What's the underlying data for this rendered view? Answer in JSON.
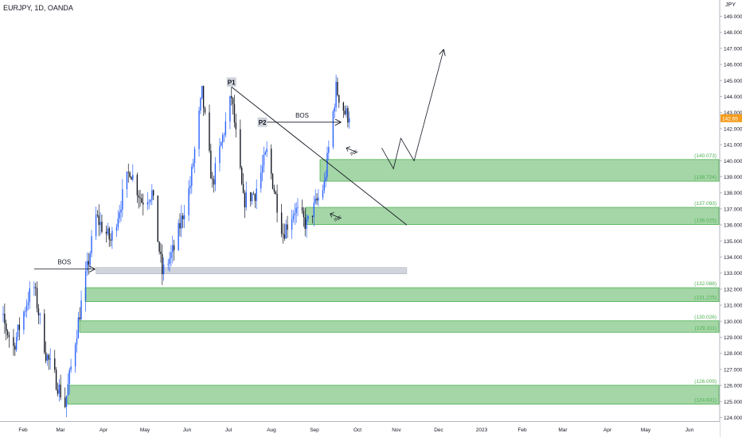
{
  "symbol_title": "EURJPY, 1D, OANDA",
  "currency": "JPY",
  "colors": {
    "up": "#2962ff",
    "down": "#131722",
    "zone_fill": "#a5d6a7",
    "zone_stroke": "#4caf50",
    "zone_label": "#4caf50",
    "grey_zone": "#d1d4dc",
    "last_price": "#f59d1f"
  },
  "chart_data": {
    "type": "candlestick",
    "y_axis": {
      "ylim": [
        123.6,
        150.0
      ],
      "ticks": [
        "124.000",
        "125.000",
        "126.000",
        "127.000",
        "128.000",
        "129.000",
        "130.000",
        "131.000",
        "132.000",
        "133.000",
        "134.000",
        "135.000",
        "136.000",
        "137.000",
        "138.000",
        "139.000",
        "140.000",
        "141.000",
        "142.000",
        "143.000",
        "144.000",
        "145.000",
        "146.000",
        "147.000",
        "148.000",
        "149.000"
      ]
    },
    "x_axis": {
      "ticks": [
        "Feb",
        "Mar",
        "Apr",
        "May",
        "Jun",
        "Jul",
        "Aug",
        "Sep",
        "Oct",
        "Nov",
        "Dec",
        "2023",
        "Feb",
        "Mar",
        "Apr",
        "May",
        "Jun"
      ]
    },
    "last_price": 142.65,
    "last_price_label": "142.65",
    "anchors": [
      [
        "2022-01-24",
        130.0
      ],
      [
        "2022-01-31",
        128.4
      ],
      [
        "2022-02-10",
        131.5
      ],
      [
        "2022-02-14",
        132.1
      ],
      [
        "2022-02-22",
        128.0
      ],
      [
        "2022-03-07",
        124.8
      ],
      [
        "2022-03-16",
        130.0
      ],
      [
        "2022-03-28",
        136.5
      ],
      [
        "2022-04-07",
        135.0
      ],
      [
        "2022-04-20",
        139.5
      ],
      [
        "2022-04-28",
        137.5
      ],
      [
        "2022-05-05",
        138.0
      ],
      [
        "2022-05-12",
        133.0
      ],
      [
        "2022-05-20",
        134.5
      ],
      [
        "2022-05-31",
        138.5
      ],
      [
        "2022-06-08",
        144.2
      ],
      [
        "2022-06-15",
        138.5
      ],
      [
        "2022-06-28",
        144.0
      ],
      [
        "2022-07-06",
        137.5
      ],
      [
        "2022-07-14",
        138.0
      ],
      [
        "2022-07-22",
        140.5
      ],
      [
        "2022-08-02",
        135.5
      ],
      [
        "2022-08-10",
        137.0
      ],
      [
        "2022-08-18",
        136.0
      ],
      [
        "2022-08-30",
        138.5
      ],
      [
        "2022-09-07",
        144.5
      ],
      [
        "2022-09-13",
        143.0
      ],
      [
        "2022-09-16",
        142.7
      ]
    ],
    "zones": [
      {
        "top": 140.073,
        "bottom": 138.724,
        "top_label": "(140.073)",
        "bottom_label": "(138.724)"
      },
      {
        "top": 137.093,
        "bottom": 136.025,
        "top_label": "(137.093)",
        "bottom_label": "(136.025)"
      },
      {
        "top": 132.088,
        "bottom": 131.225,
        "top_label": "(132.088)",
        "bottom_label": "(131.225)"
      },
      {
        "top": 130.026,
        "bottom": 129.311,
        "top_label": "(130.026)",
        "bottom_label": "(129.311)"
      },
      {
        "top": 126.009,
        "bottom": 124.831,
        "top_label": "(126.009)",
        "bottom_label": "(124.831)"
      }
    ],
    "grey_zone": {
      "start": "2022-03-28",
      "end": "2022-10-25",
      "top": 133.35,
      "bottom": 132.95
    },
    "annotations": {
      "bos_1": {
        "text": "BOS",
        "start": "2022-02-14",
        "end": "2022-03-27",
        "price": 133.25
      },
      "bos_2": {
        "text": "BOS",
        "start": "2022-07-20",
        "end": "2022-09-10",
        "price": 142.4
      },
      "p1": {
        "text": "P1",
        "date": "2022-06-28",
        "price": 144.9
      },
      "p2": {
        "text": "P2",
        "date": "2022-07-19",
        "price": 142.4
      },
      "inf_1": {
        "text": "INF",
        "date": "2022-09-14",
        "price": 140.8
      },
      "inf_2": {
        "text": "INF",
        "date": "2022-09-03",
        "price": 136.7
      },
      "trendline": {
        "start_date": "2022-06-28",
        "start_price": 144.6,
        "end_date": "2022-10-25",
        "end_price": 136.0
      },
      "projection": [
        [
          "2022-10-08",
          140.8
        ],
        [
          "2022-10-16",
          139.5
        ],
        [
          "2022-10-21",
          141.4
        ],
        [
          "2022-10-30",
          140.0
        ],
        [
          "2022-11-19",
          146.9
        ]
      ]
    }
  }
}
